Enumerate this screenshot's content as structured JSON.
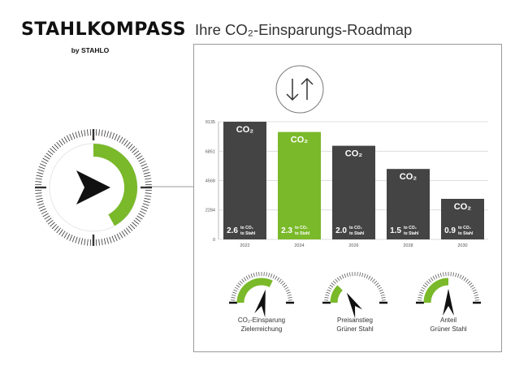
{
  "brand": {
    "title": "STAHLKOMPASS",
    "subtitle": "by STAHLO"
  },
  "heading": "Ihre CO₂-Einsparungs-Roadmap",
  "arrows_icon": "down-up-arrows-icon",
  "colors": {
    "accent_green": "#7ab92a",
    "bar_dark": "#444444",
    "text_dark": "#222222"
  },
  "compass": {
    "fill_fraction": 0.42
  },
  "chart_data": {
    "type": "bar",
    "categories": [
      "2022",
      "2024",
      "2026",
      "2028",
      "2030"
    ],
    "values": [
      9135,
      8340,
      7270,
      5470,
      3150
    ],
    "ylim": [
      0,
      9135
    ],
    "yticks": [
      0,
      2284,
      4568,
      6851,
      9135
    ],
    "ytick_labels": [
      "0",
      "2284",
      "4568",
      "6851",
      "9135"
    ],
    "grid": true,
    "highlight_index": 1,
    "bar_top_labels": [
      "CO₂",
      "CO₂",
      "CO₂",
      "CO₂",
      "CO₂"
    ],
    "bar_values_text": [
      "2.6",
      "2.3",
      "2.0",
      "1.5",
      "0.9"
    ],
    "unit_line1": "to CO₂",
    "unit_line2": "to Stahl"
  },
  "gauges": [
    {
      "label_line1": "CO₂-Einsparung",
      "label_line2": "Zielerreichung",
      "fill_fraction": 0.65,
      "pointer_fraction": 0.62
    },
    {
      "label_line1": "Preisanstieg",
      "label_line2": "Grüner Stahl",
      "fill_fraction": 0.25,
      "pointer_fraction": 0.22
    },
    {
      "label_line1": "Anteil",
      "label_line2": "Grüner Stahl",
      "fill_fraction": 0.5,
      "pointer_fraction": 0.5
    }
  ]
}
